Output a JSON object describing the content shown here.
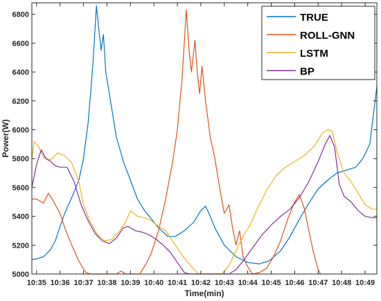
{
  "chart_data": {
    "type": "line",
    "xlabel": "Time(min)",
    "ylabel": "Power(W)",
    "x_ticks": [
      "10:35",
      "10:36",
      "10:37",
      "10:38",
      "10:39",
      "10:40",
      "10:41",
      "10:42",
      "10:43",
      "10:44",
      "10:45",
      "10:46",
      "10:47",
      "10:48",
      "10:49"
    ],
    "y_ticks": [
      5000,
      5200,
      5400,
      5600,
      5800,
      6000,
      6200,
      6400,
      6600,
      6800
    ],
    "xlim": [
      "10:34.80",
      "10:49.50"
    ],
    "ylim": [
      5000,
      6880
    ],
    "grid": false,
    "legend_position": "top-right",
    "series": [
      {
        "name": "TRUE",
        "color": "#0072BD",
        "points": [
          [
            "10:34.8",
            5100
          ],
          [
            "10:35.0",
            5105
          ],
          [
            "10:35.3",
            5120
          ],
          [
            "10:35.6",
            5170
          ],
          [
            "10:35.8",
            5230
          ],
          [
            "10:36.0",
            5330
          ],
          [
            "10:36.2",
            5420
          ],
          [
            "10:36.5",
            5530
          ],
          [
            "10:36.8",
            5650
          ],
          [
            "10:37.0",
            5800
          ],
          [
            "10:37.2",
            6050
          ],
          [
            "10:37.4",
            6450
          ],
          [
            "10:37.55",
            6860
          ],
          [
            "10:37.65",
            6700
          ],
          [
            "10:37.75",
            6550
          ],
          [
            "10:37.85",
            6660
          ],
          [
            "10:37.95",
            6400
          ],
          [
            "10:38.1",
            6250
          ],
          [
            "10:38.4",
            5950
          ],
          [
            "10:38.7",
            5780
          ],
          [
            "10:39.0",
            5650
          ],
          [
            "10:39.3",
            5520
          ],
          [
            "10:39.6",
            5440
          ],
          [
            "10:39.9",
            5380
          ],
          [
            "10:40.2",
            5320
          ],
          [
            "10:40.6",
            5260
          ],
          [
            "10:40.9",
            5260
          ],
          [
            "10:41.3",
            5300
          ],
          [
            "10:41.7",
            5360
          ],
          [
            "10:42.0",
            5440
          ],
          [
            "10:42.2",
            5470
          ],
          [
            "10:42.4",
            5400
          ],
          [
            "10:42.6",
            5320
          ],
          [
            "10:43.0",
            5200
          ],
          [
            "10:43.5",
            5120
          ],
          [
            "10:44.0",
            5080
          ],
          [
            "10:44.5",
            5070
          ],
          [
            "10:44.9",
            5090
          ],
          [
            "10:45.4",
            5160
          ],
          [
            "10:45.8",
            5260
          ],
          [
            "10:46.2",
            5380
          ],
          [
            "10:46.6",
            5490
          ],
          [
            "10:47.0",
            5590
          ],
          [
            "10:47.4",
            5650
          ],
          [
            "10:47.8",
            5700
          ],
          [
            "10:48.2",
            5720
          ],
          [
            "10:48.6",
            5740
          ],
          [
            "10:48.9",
            5800
          ],
          [
            "10:49.2",
            5900
          ],
          [
            "10:49.35",
            6100
          ],
          [
            "10:49.5",
            6300
          ]
        ]
      },
      {
        "name": "ROLL-GNN",
        "color": "#D95319",
        "points": [
          [
            "10:34.8",
            5520
          ],
          [
            "10:35.0",
            5520
          ],
          [
            "10:35.3",
            5490
          ],
          [
            "10:35.5",
            5560
          ],
          [
            "10:35.7",
            5510
          ],
          [
            "10:36.0",
            5420
          ],
          [
            "10:36.2",
            5320
          ],
          [
            "10:36.5",
            5200
          ],
          [
            "10:36.8",
            5090
          ],
          [
            "10:37.1",
            5010
          ],
          [
            "10:37.3",
            5000
          ],
          [
            "10:38.0",
            5000
          ],
          [
            "10:38.4",
            5000
          ],
          [
            "10:38.6",
            5020
          ],
          [
            "10:38.8",
            5000
          ],
          [
            "10:39.4",
            5000
          ],
          [
            "10:39.7",
            5080
          ],
          [
            "10:39.9",
            5150
          ],
          [
            "10:40.2",
            5300
          ],
          [
            "10:40.5",
            5520
          ],
          [
            "10:40.8",
            5780
          ],
          [
            "10:41.0",
            6000
          ],
          [
            "10:41.2",
            6350
          ],
          [
            "10:41.38",
            6830
          ],
          [
            "10:41.5",
            6550
          ],
          [
            "10:41.6",
            6400
          ],
          [
            "10:41.75",
            6620
          ],
          [
            "10:41.85",
            6400
          ],
          [
            "10:41.95",
            6250
          ],
          [
            "10:42.05",
            6440
          ],
          [
            "10:42.2",
            6200
          ],
          [
            "10:42.4",
            5950
          ],
          [
            "10:42.6",
            5800
          ],
          [
            "10:42.8",
            5600
          ],
          [
            "10:43.0",
            5420
          ],
          [
            "10:43.2",
            5480
          ],
          [
            "10:43.35",
            5320
          ],
          [
            "10:43.5",
            5200
          ],
          [
            "10:43.65",
            5300
          ],
          [
            "10:43.8",
            5120
          ],
          [
            "10:44.0",
            5050
          ],
          [
            "10:44.2",
            5000
          ],
          [
            "10:44.5",
            5010
          ],
          [
            "10:44.8",
            5040
          ],
          [
            "10:45.1",
            5120
          ],
          [
            "10:45.4",
            5230
          ],
          [
            "10:45.7",
            5380
          ],
          [
            "10:46.0",
            5500
          ],
          [
            "10:46.2",
            5550
          ],
          [
            "10:46.4",
            5460
          ],
          [
            "10:46.6",
            5300
          ],
          [
            "10:46.8",
            5150
          ],
          [
            "10:47.0",
            5030
          ],
          [
            "10:47.1",
            5000
          ]
        ]
      },
      {
        "name": "LSTM",
        "color": "#EDB120",
        "points": [
          [
            "10:34.8",
            5800
          ],
          [
            "10:34.9",
            5920
          ],
          [
            "10:35.1",
            5880
          ],
          [
            "10:35.3",
            5810
          ],
          [
            "10:35.6",
            5790
          ],
          [
            "10:35.9",
            5840
          ],
          [
            "10:36.2",
            5820
          ],
          [
            "10:36.5",
            5770
          ],
          [
            "10:36.8",
            5640
          ],
          [
            "10:37.0",
            5480
          ],
          [
            "10:37.3",
            5360
          ],
          [
            "10:37.6",
            5270
          ],
          [
            "10:37.9",
            5230
          ],
          [
            "10:38.2",
            5240
          ],
          [
            "10:38.5",
            5290
          ],
          [
            "10:38.8",
            5360
          ],
          [
            "10:39.0",
            5440
          ],
          [
            "10:39.3",
            5400
          ],
          [
            "10:39.6",
            5390
          ],
          [
            "10:39.9",
            5370
          ],
          [
            "10:40.2",
            5330
          ],
          [
            "10:40.5",
            5300
          ],
          [
            "10:40.7",
            5250
          ],
          [
            "10:41.0",
            5180
          ],
          [
            "10:41.3",
            5110
          ],
          [
            "10:41.6",
            5050
          ],
          [
            "10:41.9",
            5000
          ],
          [
            "10:42.6",
            5000
          ],
          [
            "10:42.9",
            5000
          ],
          [
            "10:43.2",
            5060
          ],
          [
            "10:43.5",
            5160
          ],
          [
            "10:43.8",
            5260
          ],
          [
            "10:44.1",
            5340
          ],
          [
            "10:44.4",
            5450
          ],
          [
            "10:44.8",
            5580
          ],
          [
            "10:45.2",
            5680
          ],
          [
            "10:45.6",
            5740
          ],
          [
            "10:46.0",
            5780
          ],
          [
            "10:46.4",
            5820
          ],
          [
            "10:46.8",
            5880
          ],
          [
            "10:47.2",
            5980
          ],
          [
            "10:47.4",
            6000
          ],
          [
            "10:47.6",
            5990
          ],
          [
            "10:47.8",
            5850
          ],
          [
            "10:48.1",
            5700
          ],
          [
            "10:48.4",
            5640
          ],
          [
            "10:48.7",
            5560
          ],
          [
            "10:49.0",
            5480
          ],
          [
            "10:49.3",
            5450
          ],
          [
            "10:49.5",
            5450
          ]
        ]
      },
      {
        "name": "BP",
        "color": "#7E2F8E",
        "points": [
          [
            "10:34.8",
            5600
          ],
          [
            "10:35.0",
            5760
          ],
          [
            "10:35.2",
            5860
          ],
          [
            "10:35.4",
            5800
          ],
          [
            "10:35.6",
            5780
          ],
          [
            "10:35.8",
            5750
          ],
          [
            "10:36.0",
            5740
          ],
          [
            "10:36.3",
            5740
          ],
          [
            "10:36.6",
            5640
          ],
          [
            "10:36.9",
            5480
          ],
          [
            "10:37.2",
            5370
          ],
          [
            "10:37.5",
            5280
          ],
          [
            "10:37.8",
            5230
          ],
          [
            "10:38.1",
            5210
          ],
          [
            "10:38.4",
            5250
          ],
          [
            "10:38.7",
            5320
          ],
          [
            "10:38.9",
            5330
          ],
          [
            "10:39.2",
            5300
          ],
          [
            "10:39.5",
            5290
          ],
          [
            "10:39.8",
            5270
          ],
          [
            "10:40.1",
            5240
          ],
          [
            "10:40.4",
            5200
          ],
          [
            "10:40.7",
            5150
          ],
          [
            "10:41.0",
            5080
          ],
          [
            "10:41.3",
            5010
          ],
          [
            "10:41.5",
            5000
          ],
          [
            "10:43.2",
            5000
          ],
          [
            "10:43.5",
            5030
          ],
          [
            "10:43.8",
            5090
          ],
          [
            "10:44.2",
            5180
          ],
          [
            "10:44.6",
            5270
          ],
          [
            "10:45.0",
            5340
          ],
          [
            "10:45.4",
            5400
          ],
          [
            "10:45.8",
            5450
          ],
          [
            "10:46.2",
            5530
          ],
          [
            "10:46.6",
            5640
          ],
          [
            "10:47.0",
            5780
          ],
          [
            "10:47.3",
            5900
          ],
          [
            "10:47.5",
            5960
          ],
          [
            "10:47.7",
            5880
          ],
          [
            "10:47.9",
            5620
          ],
          [
            "10:48.1",
            5540
          ],
          [
            "10:48.4",
            5500
          ],
          [
            "10:48.7",
            5440
          ],
          [
            "10:49.0",
            5400
          ],
          [
            "10:49.3",
            5390
          ],
          [
            "10:49.5",
            5390
          ]
        ]
      }
    ]
  }
}
